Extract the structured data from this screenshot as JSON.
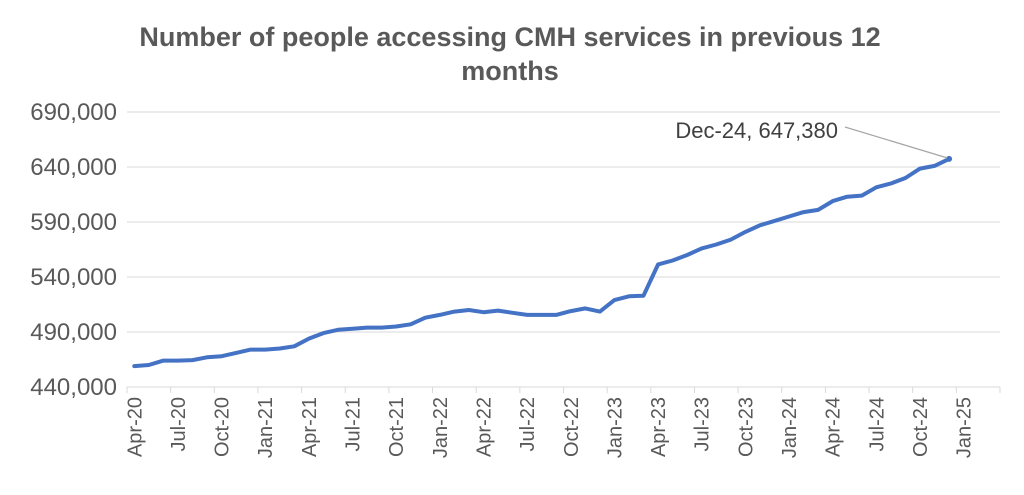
{
  "chart_data": {
    "type": "line",
    "title_lines": [
      "Number of people accessing CMH services in previous 12",
      "months"
    ],
    "xlabel": "",
    "ylabel": "",
    "ylim": [
      440000,
      690000
    ],
    "y_ticks": [
      "440,000",
      "490,000",
      "540,000",
      "590,000",
      "640,000",
      "690,000"
    ],
    "y_tick_values": [
      440000,
      490000,
      540000,
      590000,
      640000,
      690000
    ],
    "x_ticks": [
      "Apr-20",
      "Jul-20",
      "Oct-20",
      "Jan-21",
      "Apr-21",
      "Jul-21",
      "Oct-21",
      "Jan-22",
      "Apr-22",
      "Jul-22",
      "Oct-22",
      "Jan-23",
      "Apr-23",
      "Jul-23",
      "Oct-23",
      "Jan-24",
      "Apr-24",
      "Jul-24",
      "Oct-24",
      "Jan-25"
    ],
    "grid": true,
    "legend": "none",
    "line_color": "#4472C4",
    "grid_color": "#D9D9D9",
    "series": [
      {
        "x": [
          "Apr-20",
          "May-20",
          "Jun-20",
          "Jul-20",
          "Aug-20",
          "Sep-20",
          "Oct-20",
          "Nov-20",
          "Dec-20",
          "Jan-21",
          "Feb-21",
          "Mar-21",
          "Apr-21",
          "May-21",
          "Jun-21",
          "Jul-21",
          "Aug-21",
          "Sep-21",
          "Oct-21",
          "Nov-21",
          "Dec-21",
          "Jan-22",
          "Feb-22",
          "Mar-22",
          "Apr-22",
          "May-22",
          "Jun-22",
          "Jul-22",
          "Aug-22",
          "Sep-22",
          "Oct-22",
          "Nov-22",
          "Dec-22",
          "Jan-23",
          "Feb-23",
          "Mar-23",
          "Apr-23",
          "May-23",
          "Jun-23",
          "Jul-23",
          "Aug-23",
          "Sep-23",
          "Oct-23",
          "Nov-23",
          "Dec-23",
          "Jan-24",
          "Feb-24",
          "Mar-24",
          "Apr-24",
          "May-24",
          "Jun-24",
          "Jul-24",
          "Aug-24",
          "Sep-24",
          "Oct-24",
          "Nov-24",
          "Dec-24"
        ],
        "values": [
          459000,
          460000,
          464000,
          464000,
          464500,
          467000,
          468000,
          471000,
          474000,
          474000,
          475000,
          477000,
          484000,
          489000,
          492000,
          493000,
          494000,
          494000,
          495000,
          497000,
          503000,
          505500,
          508500,
          510000,
          508000,
          509500,
          507500,
          505500,
          505500,
          505500,
          509000,
          511500,
          508500,
          519000,
          522500,
          523000,
          551500,
          555000,
          560000,
          566000,
          569500,
          574000,
          581000,
          587000,
          591000,
          595000,
          599000,
          601000,
          609000,
          613000,
          614000,
          621500,
          625000,
          630000,
          638500,
          641000,
          647380
        ]
      }
    ],
    "annotation": "Dec-24, 647,380"
  }
}
